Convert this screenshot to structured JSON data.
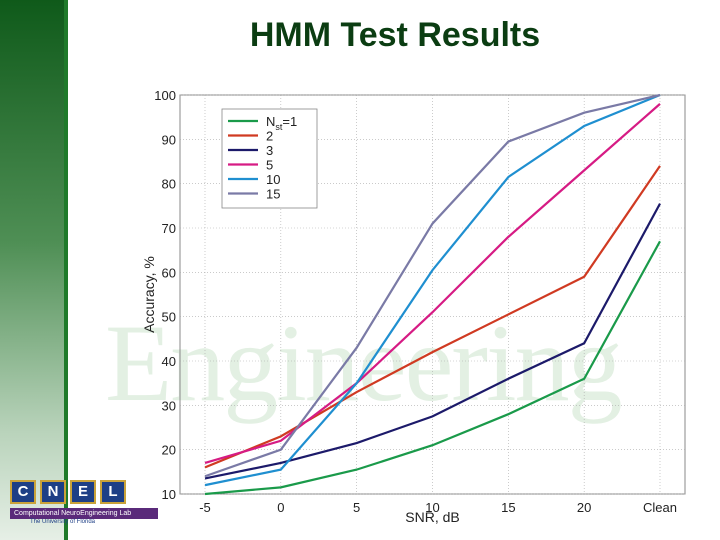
{
  "slide": {
    "title": "HMM Test Results"
  },
  "logo": {
    "letters": [
      "C",
      "N",
      "E",
      "L"
    ],
    "banner": "Computational NeuroEngineering Lab",
    "subtitle": "The University of Florida"
  },
  "watermark": {
    "text": "Engineering"
  },
  "colors": {
    "sidebar": "#1f7a2a",
    "title": "#0b3d12"
  },
  "chart_data": {
    "type": "line",
    "title": "",
    "xlabel": "SNR, dB",
    "ylabel": "Accuracy, %",
    "categories": [
      "-5",
      "0",
      "5",
      "10",
      "15",
      "20",
      "Clean"
    ],
    "ylim": [
      10,
      100
    ],
    "yticks": [
      10,
      20,
      30,
      40,
      50,
      60,
      70,
      80,
      90,
      100
    ],
    "grid": true,
    "legend_position": "top-left",
    "legend_title_prefix": "N",
    "legend_title_sub": "st",
    "series": [
      {
        "name": "=1",
        "color": "#1a9a4a",
        "values": [
          10,
          11.5,
          15.5,
          21,
          28,
          36,
          67
        ]
      },
      {
        "name": "2",
        "color": "#d03a22",
        "values": [
          16,
          23,
          33,
          42,
          50.5,
          59,
          84
        ]
      },
      {
        "name": "3",
        "color": "#1c1a6a",
        "values": [
          13.5,
          17,
          21.5,
          27.5,
          36,
          44,
          75.5
        ]
      },
      {
        "name": "5",
        "color": "#d61b84",
        "values": [
          17,
          22,
          35,
          51,
          68,
          83,
          98
        ]
      },
      {
        "name": "10",
        "color": "#1f8fd0",
        "values": [
          12,
          15.5,
          35,
          60.5,
          81.5,
          93,
          100
        ]
      },
      {
        "name": "15",
        "color": "#7a7aa6",
        "values": [
          14,
          20,
          43,
          71,
          89.5,
          96,
          100
        ]
      }
    ]
  }
}
